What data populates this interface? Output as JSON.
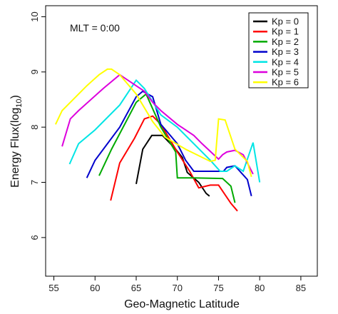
{
  "chart_data": {
    "type": "line",
    "title": "",
    "xlabel": "Geo-Magnetic Latitude",
    "ylabel_main": "Energy Flux(log",
    "ylabel_sub": "10",
    "ylabel_close": ")",
    "xlim": [
      54,
      87
    ],
    "ylim": [
      5.3,
      10.2
    ],
    "x_ticks": [
      55,
      60,
      65,
      70,
      75,
      80,
      85
    ],
    "y_ticks": [
      6,
      7,
      8,
      9,
      10
    ],
    "grid": false,
    "legend_placement": "top-right",
    "annotation": "MLT = 0:00",
    "series": [
      {
        "name": "Kp = 0",
        "color": "#000000",
        "points": [
          [
            65,
            6.97
          ],
          [
            65.8,
            7.6
          ],
          [
            66.9,
            7.85
          ],
          [
            68.2,
            7.85
          ],
          [
            69.8,
            7.6
          ],
          [
            70.6,
            7.45
          ],
          [
            71.2,
            7.18
          ],
          [
            72.6,
            7.0
          ],
          [
            73.5,
            6.8
          ],
          [
            73.9,
            6.75
          ]
        ]
      },
      {
        "name": "Kp = 1",
        "color": "#ff0000",
        "points": [
          [
            61.9,
            6.67
          ],
          [
            63.0,
            7.35
          ],
          [
            64.8,
            7.8
          ],
          [
            66.0,
            8.15
          ],
          [
            67.0,
            8.2
          ],
          [
            68.0,
            8.05
          ],
          [
            70.0,
            7.55
          ],
          [
            71.5,
            7.2
          ],
          [
            72.6,
            6.9
          ],
          [
            74.0,
            6.95
          ],
          [
            75.0,
            6.95
          ],
          [
            76.5,
            6.62
          ],
          [
            77.3,
            6.48
          ]
        ]
      },
      {
        "name": "Kp = 2",
        "color": "#00aa00",
        "points": [
          [
            60.5,
            7.12
          ],
          [
            62.0,
            7.6
          ],
          [
            65.0,
            8.45
          ],
          [
            66.2,
            8.6
          ],
          [
            68.0,
            8.0
          ],
          [
            69.8,
            7.55
          ],
          [
            70.0,
            7.08
          ],
          [
            71.8,
            7.08
          ],
          [
            75.5,
            7.07
          ],
          [
            76.5,
            6.93
          ],
          [
            77.0,
            6.63
          ]
        ]
      },
      {
        "name": "Kp = 3",
        "color": "#0000cc",
        "points": [
          [
            59.0,
            7.08
          ],
          [
            60.0,
            7.4
          ],
          [
            63.0,
            8.0
          ],
          [
            65.0,
            8.55
          ],
          [
            65.8,
            8.65
          ],
          [
            67.0,
            8.55
          ],
          [
            68.0,
            8.05
          ],
          [
            70.0,
            7.7
          ],
          [
            71.0,
            7.4
          ],
          [
            72.0,
            7.2
          ],
          [
            74.5,
            7.2
          ],
          [
            75.6,
            7.2
          ],
          [
            76.0,
            7.27
          ],
          [
            77.0,
            7.3
          ],
          [
            78.5,
            7.05
          ],
          [
            79.0,
            6.75
          ]
        ]
      },
      {
        "name": "Kp = 4",
        "color": "#00e5e5",
        "points": [
          [
            56.9,
            7.33
          ],
          [
            58.0,
            7.7
          ],
          [
            60.0,
            7.95
          ],
          [
            63.0,
            8.4
          ],
          [
            65.0,
            8.85
          ],
          [
            66.0,
            8.7
          ],
          [
            68.0,
            8.22
          ],
          [
            70.0,
            8.0
          ],
          [
            74.0,
            7.4
          ],
          [
            75.2,
            7.2
          ],
          [
            76.0,
            7.2
          ],
          [
            77.0,
            7.3
          ],
          [
            78.0,
            7.2
          ],
          [
            79.2,
            7.72
          ],
          [
            80.0,
            7.0
          ]
        ]
      },
      {
        "name": "Kp = 5",
        "color": "#dd00dd",
        "points": [
          [
            56.0,
            7.65
          ],
          [
            57.0,
            8.15
          ],
          [
            58.0,
            8.3
          ],
          [
            61.0,
            8.7
          ],
          [
            63.0,
            8.95
          ],
          [
            65.0,
            8.75
          ],
          [
            66.0,
            8.65
          ],
          [
            67.0,
            8.45
          ],
          [
            68.0,
            8.3
          ],
          [
            70.0,
            8.05
          ],
          [
            72.0,
            7.85
          ],
          [
            73.0,
            7.7
          ],
          [
            75.0,
            7.42
          ],
          [
            75.5,
            7.5
          ],
          [
            76.0,
            7.55
          ],
          [
            77.0,
            7.58
          ],
          [
            78.0,
            7.5
          ],
          [
            79.2,
            7.15
          ]
        ]
      },
      {
        "name": "Kp = 6",
        "color": "#ffff00",
        "points": [
          [
            55.2,
            8.05
          ],
          [
            56.0,
            8.3
          ],
          [
            57.0,
            8.45
          ],
          [
            59.0,
            8.75
          ],
          [
            60.5,
            8.95
          ],
          [
            61.5,
            9.05
          ],
          [
            62.0,
            9.05
          ],
          [
            63.0,
            8.95
          ],
          [
            65.0,
            8.6
          ],
          [
            67.0,
            8.1
          ],
          [
            68.5,
            7.82
          ],
          [
            71.0,
            7.6
          ],
          [
            74.0,
            7.38
          ],
          [
            74.6,
            7.4
          ],
          [
            75.0,
            8.15
          ],
          [
            75.8,
            8.13
          ],
          [
            77.0,
            7.6
          ],
          [
            78.5,
            7.38
          ],
          [
            79.0,
            7.1
          ]
        ]
      }
    ]
  }
}
